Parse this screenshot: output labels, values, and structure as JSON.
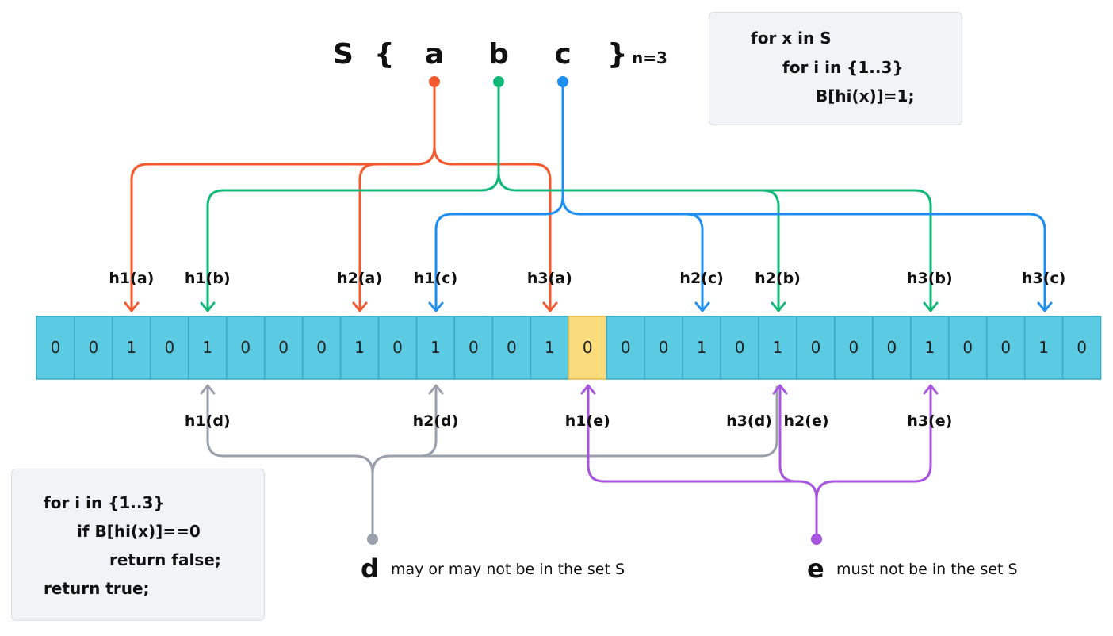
{
  "set": {
    "name": "S",
    "open": "{",
    "close": "}",
    "elements": [
      {
        "name": "a",
        "color": "#f4592f"
      },
      {
        "name": "b",
        "color": "#13b879"
      },
      {
        "name": "c",
        "color": "#1e8ef0"
      }
    ],
    "size_label": "n=3"
  },
  "insert_code": [
    "for x in S",
    "for i in {1..3}",
    "B[hi(x)]=1;"
  ],
  "query_code": [
    "for i in {1..3}",
    "if B[hi(x)]==0",
    "return false;",
    "return true;"
  ],
  "bits": [
    0,
    0,
    1,
    0,
    1,
    0,
    0,
    0,
    1,
    0,
    1,
    0,
    0,
    1,
    0,
    0,
    0,
    1,
    0,
    1,
    0,
    0,
    0,
    1,
    0,
    0,
    1,
    0
  ],
  "highlight_index": 14,
  "colors": {
    "array_fill": "#5bcbe3",
    "array_stroke": "#3aa9c4",
    "highlight_fill": "#fadc7c",
    "a": "#f4592f",
    "b": "#13b879",
    "c": "#1e8ef0",
    "d": "#9aa1ad",
    "e": "#a855e0"
  },
  "top_hashes": [
    {
      "label": "h1(a)",
      "index": 2,
      "element": "a"
    },
    {
      "label": "h1(b)",
      "index": 4,
      "element": "b"
    },
    {
      "label": "h2(a)",
      "index": 8,
      "element": "a"
    },
    {
      "label": "h1(c)",
      "index": 10,
      "element": "c"
    },
    {
      "label": "h3(a)",
      "index": 13,
      "element": "a"
    },
    {
      "label": "h2(c)",
      "index": 17,
      "element": "c"
    },
    {
      "label": "h2(b)",
      "index": 19,
      "element": "b"
    },
    {
      "label": "h3(b)",
      "index": 23,
      "element": "b"
    },
    {
      "label": "h3(c)",
      "index": 26,
      "element": "c"
    }
  ],
  "bottom_hashes": [
    {
      "label": "h1(d)",
      "index": 4,
      "element": "d"
    },
    {
      "label": "h2(d)",
      "index": 10,
      "element": "d"
    },
    {
      "label": "h1(e)",
      "index": 14,
      "element": "e"
    },
    {
      "label": "h3(d)",
      "index": 19,
      "element": "d"
    },
    {
      "label": "h2(e)",
      "index": 19,
      "element": "e"
    },
    {
      "label": "h3(e)",
      "index": 23,
      "element": "e"
    }
  ],
  "queries": [
    {
      "name": "d",
      "description": "may or may not be in the set S"
    },
    {
      "name": "e",
      "description": "must not be in the set S"
    }
  ]
}
